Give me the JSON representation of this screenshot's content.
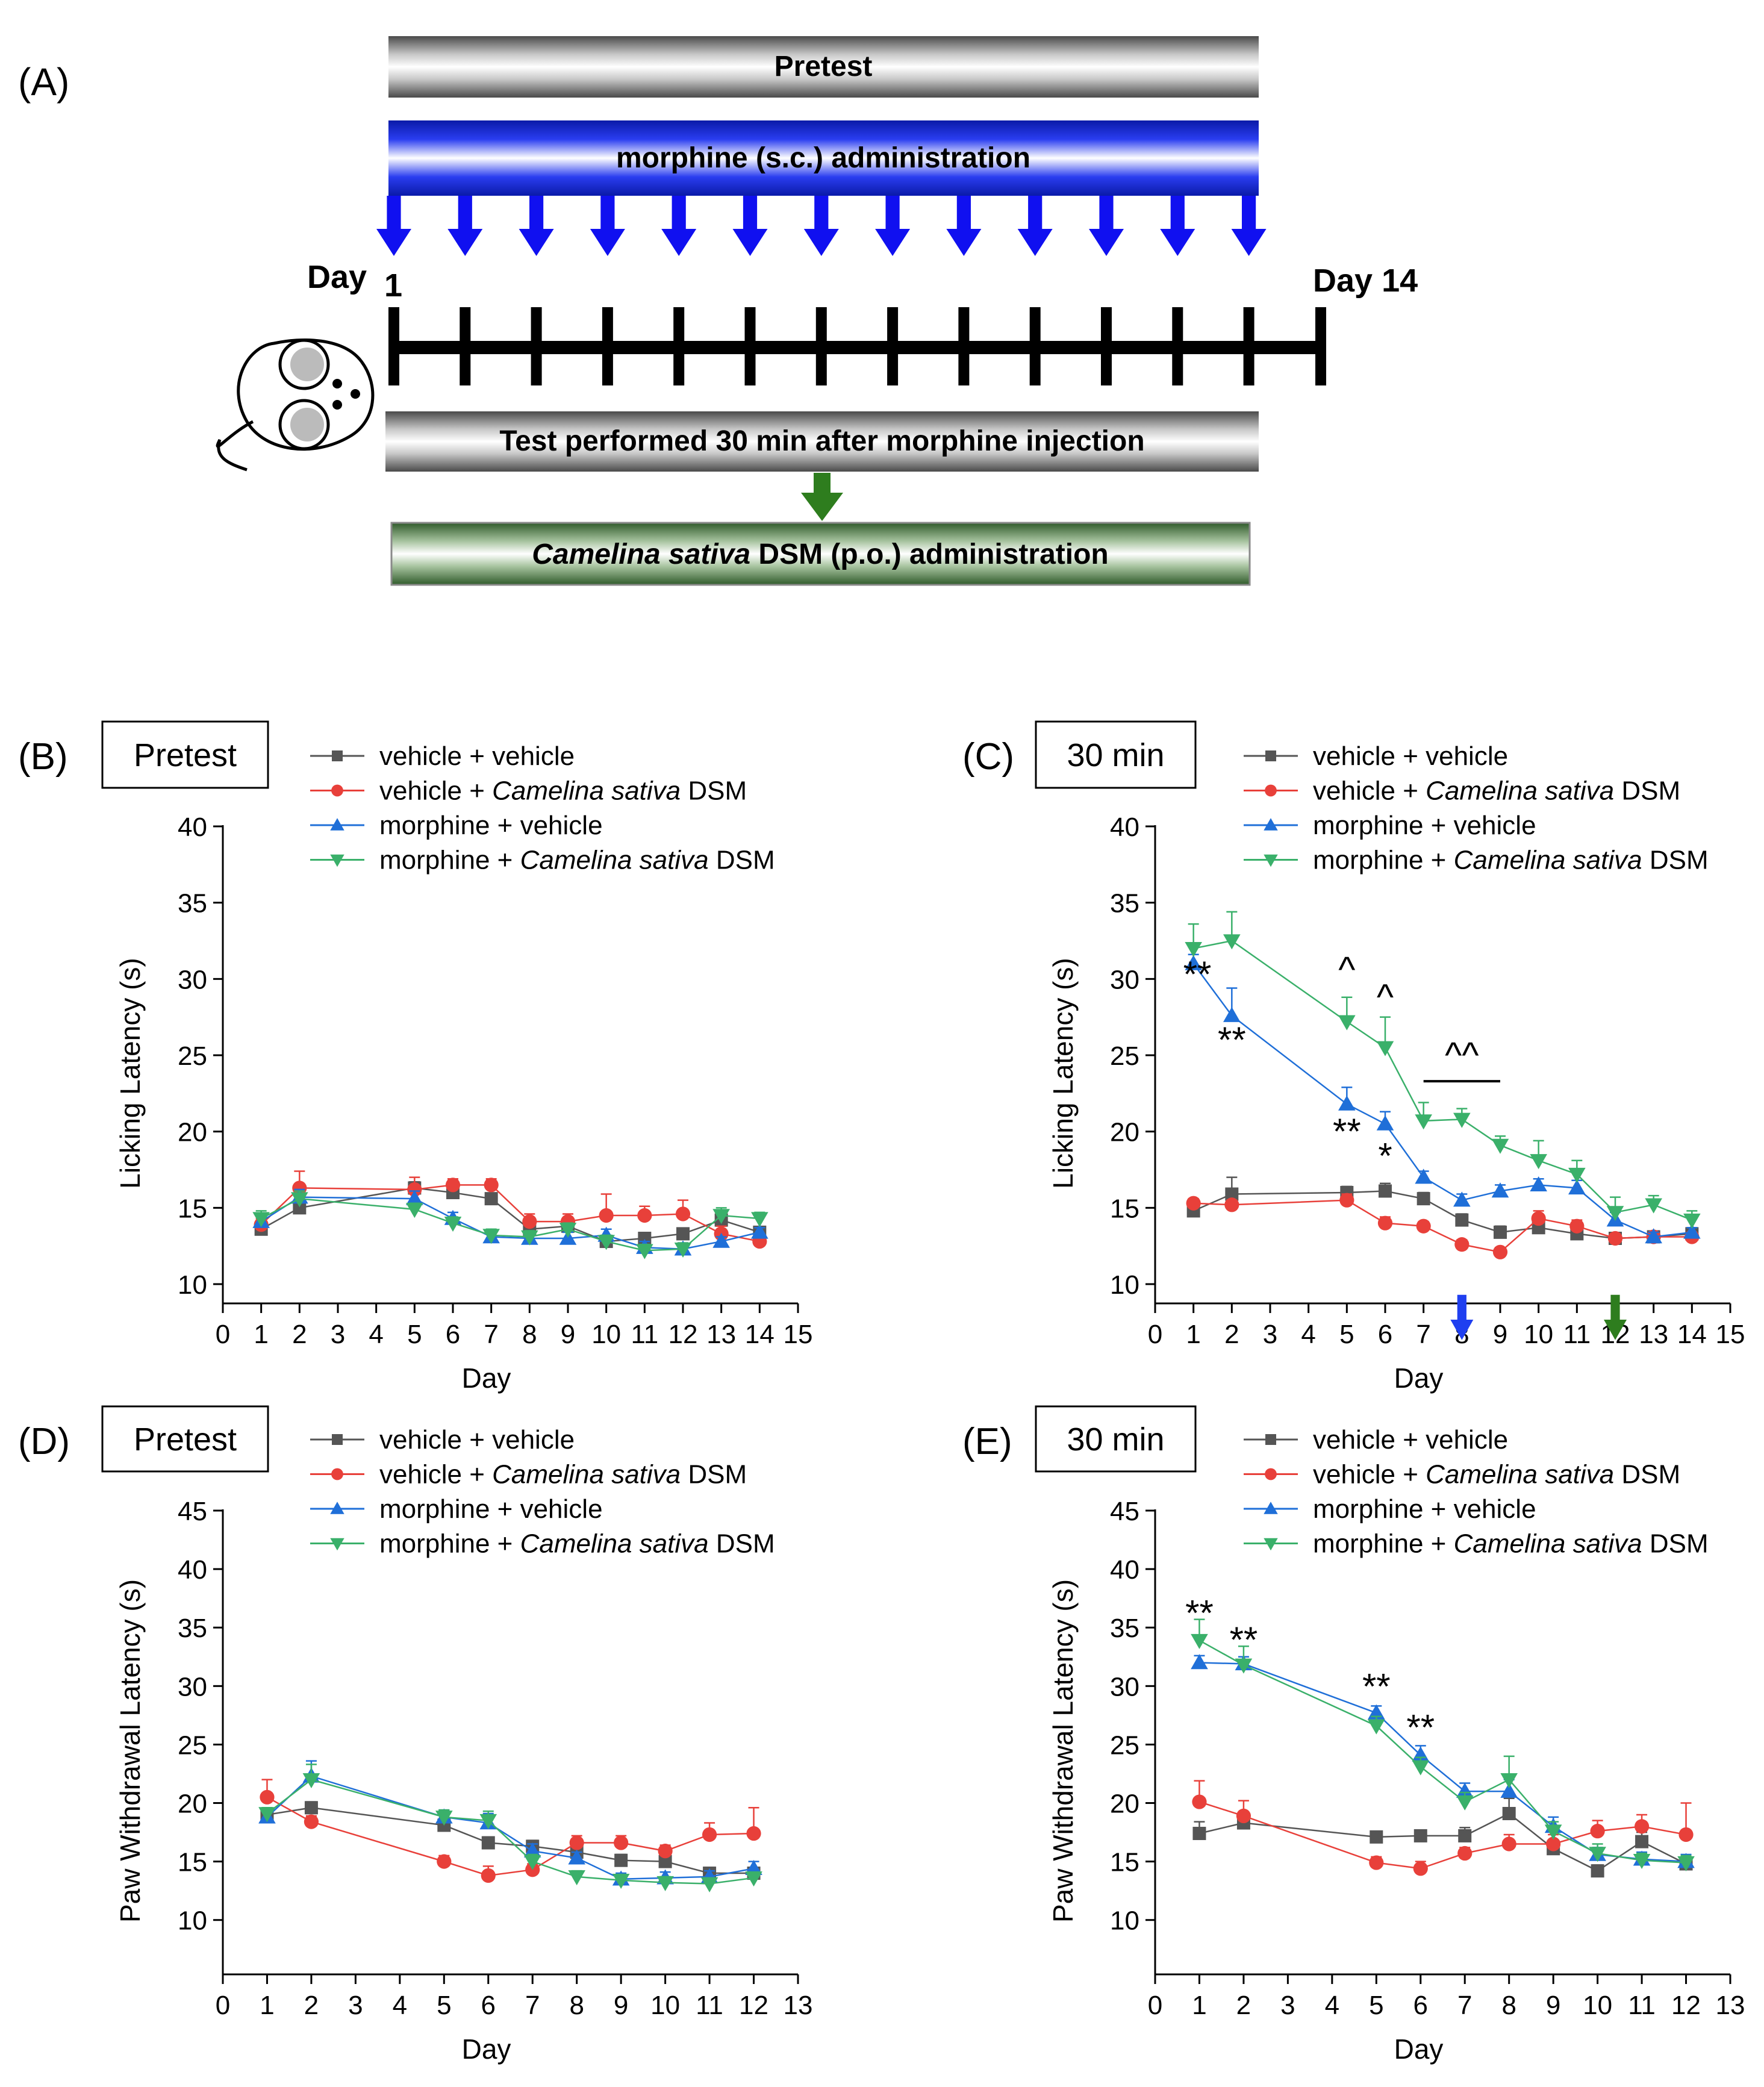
{
  "figure": {
    "panel_a": {
      "label": "(A)",
      "pretest_bar": "Pretest",
      "morphine_bar": "morphine (s.c.) administration",
      "test_bar": "Test performed 30 min after morphine injection",
      "camelina_bar_italic": "Camelina sativa",
      "camelina_bar_rest": " DSM (p.o.) administration",
      "day_start_word": "Day",
      "day_start_num": "1",
      "day_end": "Day 14",
      "colors": {
        "blue": "#1010f0",
        "green": "#2e7d1e",
        "black": "#000000"
      }
    },
    "legend": [
      {
        "prefix": "vehicle + vehicle",
        "italic": "",
        "suffix": "",
        "color": "#555555",
        "marker": "square"
      },
      {
        "prefix": "vehicle + ",
        "italic": "Camelina sativa",
        "suffix": " DSM",
        "color": "#e8403a",
        "marker": "circle"
      },
      {
        "prefix": "morphine + vehicle",
        "italic": "",
        "suffix": "",
        "color": "#1f6fd8",
        "marker": "triangle-up"
      },
      {
        "prefix": "morphine + ",
        "italic": "Camelina sativa",
        "suffix": " DSM",
        "color": "#3ab06a",
        "marker": "triangle-down"
      }
    ]
  },
  "chart_data": [
    {
      "id": "B",
      "type": "line",
      "panel_label": "(B)",
      "boxed_title": "Pretest",
      "xlabel": "Day",
      "ylabel": "Licking Latency (s)",
      "xlim": [
        0,
        15
      ],
      "ylim": [
        10,
        40
      ],
      "xticks": [
        0,
        1,
        2,
        3,
        4,
        5,
        6,
        7,
        8,
        9,
        10,
        11,
        12,
        13,
        14,
        15
      ],
      "yticks": [
        10,
        15,
        20,
        25,
        30,
        35,
        40
      ],
      "x": [
        1,
        2,
        5,
        6,
        7,
        8,
        9,
        10,
        11,
        12,
        13,
        14
      ],
      "series": [
        {
          "name": "vehicle + vehicle",
          "values": [
            13.6,
            15.0,
            16.3,
            16.0,
            15.6,
            13.6,
            13.8,
            12.8,
            13.0,
            13.3,
            14.2,
            13.4
          ],
          "err": [
            0.3,
            0.3,
            0.4,
            0.3,
            0.3,
            0.3,
            0.3,
            0.3,
            0.3,
            0.3,
            0.3,
            0.3
          ]
        },
        {
          "name": "vehicle + Camelina sativa DSM",
          "values": [
            13.9,
            16.3,
            16.2,
            16.5,
            16.5,
            14.1,
            14.1,
            14.5,
            14.5,
            14.6,
            13.3,
            12.8
          ],
          "err": [
            0.4,
            1.1,
            0.8,
            0.4,
            0.4,
            0.5,
            0.5,
            1.4,
            0.6,
            0.9,
            0.5,
            0.3
          ]
        },
        {
          "name": "morphine + vehicle",
          "values": [
            14.1,
            15.7,
            15.6,
            14.3,
            13.1,
            13.0,
            13.0,
            13.2,
            12.4,
            12.3,
            12.8,
            13.4
          ],
          "err": [
            0.5,
            0.5,
            0.5,
            0.4,
            0.4,
            0.4,
            0.4,
            0.4,
            0.4,
            0.4,
            0.3,
            0.3
          ]
        },
        {
          "name": "morphine + Camelina sativa DSM",
          "values": [
            14.3,
            15.6,
            14.9,
            14.0,
            13.2,
            13.1,
            13.6,
            12.8,
            12.2,
            12.3,
            14.5,
            14.3
          ],
          "err": [
            0.5,
            0.5,
            0.4,
            0.4,
            0.4,
            0.4,
            0.4,
            0.4,
            0.4,
            0.4,
            0.5,
            0.4
          ]
        }
      ]
    },
    {
      "id": "C",
      "type": "line",
      "panel_label": "(C)",
      "boxed_title": "30 min",
      "xlabel": "Day",
      "ylabel": "Licking Latency (s)",
      "xlim": [
        0,
        15
      ],
      "ylim": [
        10,
        40
      ],
      "xticks": [
        0,
        1,
        2,
        3,
        4,
        5,
        6,
        7,
        8,
        9,
        10,
        11,
        12,
        13,
        14,
        15
      ],
      "yticks": [
        10,
        15,
        20,
        25,
        30,
        35,
        40
      ],
      "x": [
        1,
        2,
        5,
        6,
        7,
        8,
        9,
        10,
        11,
        12,
        13,
        14
      ],
      "series": [
        {
          "name": "vehicle + vehicle",
          "values": [
            14.8,
            15.9,
            16.0,
            16.1,
            15.6,
            14.2,
            13.4,
            13.7,
            13.3,
            13.0,
            13.1,
            13.3
          ],
          "err": [
            0.3,
            1.1,
            0.4,
            0.5,
            0.4,
            0.4,
            0.4,
            0.4,
            0.3,
            0.3,
            0.3,
            0.3
          ]
        },
        {
          "name": "vehicle + Camelina sativa DSM",
          "values": [
            15.3,
            15.2,
            15.5,
            14.0,
            13.8,
            12.6,
            12.1,
            14.3,
            13.8,
            13.0,
            13.1,
            13.1
          ],
          "err": [
            0.3,
            0.3,
            0.4,
            0.4,
            0.3,
            0.3,
            0.3,
            0.5,
            0.4,
            0.3,
            0.3,
            0.3
          ]
        },
        {
          "name": "morphine + vehicle",
          "values": [
            31.0,
            27.6,
            21.8,
            20.5,
            17.0,
            15.5,
            16.1,
            16.5,
            16.3,
            14.2,
            13.1,
            13.4
          ],
          "err": [
            0.6,
            1.8,
            1.1,
            0.8,
            0.4,
            0.4,
            0.4,
            0.4,
            0.5,
            0.5,
            0.3,
            0.3
          ]
        },
        {
          "name": "morphine + Camelina sativa DSM",
          "values": [
            32.0,
            32.5,
            27.2,
            25.5,
            20.7,
            20.8,
            19.1,
            18.1,
            17.2,
            14.7,
            15.2,
            14.2
          ],
          "err": [
            1.6,
            1.9,
            1.6,
            2.0,
            1.2,
            0.7,
            0.6,
            1.3,
            0.9,
            1.0,
            0.6,
            0.6
          ]
        }
      ],
      "annotations": [
        {
          "text": "**",
          "x": 1.1,
          "y": 29.5
        },
        {
          "text": "**",
          "x": 2.0,
          "y": 25.2
        },
        {
          "text": "^",
          "x": 5.0,
          "y": 29.8
        },
        {
          "text": "^",
          "x": 6.0,
          "y": 28.0
        },
        {
          "text": "^^",
          "x": 8.0,
          "y": 24.2
        },
        {
          "text": "**",
          "x": 5.0,
          "y": 19.2
        },
        {
          "text": "*",
          "x": 6.0,
          "y": 17.6
        }
      ],
      "bracket": {
        "x1": 7,
        "x2": 9,
        "y": 23.3
      },
      "arrows": [
        {
          "x": 8,
          "color": "#1f3ff0"
        },
        {
          "x": 12,
          "color": "#2e7d1e"
        }
      ]
    },
    {
      "id": "D",
      "type": "line",
      "panel_label": "(D)",
      "boxed_title": "Pretest",
      "xlabel": "Day",
      "ylabel": "Paw Withdrawal Latency (s)",
      "xlim": [
        0,
        13
      ],
      "ylim": [
        7,
        45
      ],
      "xticks": [
        0,
        1,
        2,
        3,
        4,
        5,
        6,
        7,
        8,
        9,
        10,
        11,
        12,
        13
      ],
      "yticks": [
        10,
        15,
        20,
        25,
        30,
        35,
        40,
        45
      ],
      "x": [
        1,
        2,
        5,
        6,
        7,
        8,
        9,
        10,
        11,
        12
      ],
      "series": [
        {
          "name": "vehicle + vehicle",
          "values": [
            19.0,
            19.6,
            18.1,
            16.6,
            16.3,
            15.8,
            15.1,
            15.0,
            14.0,
            14.0
          ],
          "err": [
            0.5,
            0.5,
            0.5,
            0.5,
            0.5,
            0.5,
            0.5,
            0.5,
            0.5,
            0.5
          ]
        },
        {
          "name": "vehicle + Camelina sativa DSM",
          "values": [
            20.5,
            18.4,
            15.0,
            13.8,
            14.3,
            16.6,
            16.6,
            15.9,
            17.3,
            17.4
          ],
          "err": [
            1.5,
            0.5,
            0.5,
            0.8,
            0.5,
            0.6,
            0.6,
            0.5,
            1.0,
            2.2
          ]
        },
        {
          "name": "morphine + vehicle",
          "values": [
            18.8,
            22.3,
            18.8,
            18.3,
            15.9,
            15.3,
            13.5,
            13.6,
            13.7,
            14.4
          ],
          "err": [
            0.5,
            1.3,
            0.6,
            0.8,
            0.6,
            0.5,
            0.5,
            0.5,
            0.5,
            0.6
          ]
        },
        {
          "name": "morphine + Camelina sativa DSM",
          "values": [
            19.1,
            22.0,
            18.8,
            18.5,
            15.0,
            13.7,
            13.4,
            13.2,
            13.1,
            13.6
          ],
          "err": [
            0.5,
            1.3,
            0.6,
            0.8,
            0.6,
            0.5,
            0.5,
            0.5,
            0.5,
            0.5
          ]
        }
      ]
    },
    {
      "id": "E",
      "type": "line",
      "panel_label": "(E)",
      "boxed_title": "30 min",
      "xlabel": "Day",
      "ylabel": "Paw Withdrawal Latency (s)",
      "xlim": [
        0,
        13
      ],
      "ylim": [
        7,
        45
      ],
      "xticks": [
        0,
        1,
        2,
        3,
        4,
        5,
        6,
        7,
        8,
        9,
        10,
        11,
        12,
        13
      ],
      "yticks": [
        10,
        15,
        20,
        25,
        30,
        35,
        40,
        45
      ],
      "x": [
        1,
        2,
        5,
        6,
        7,
        8,
        9,
        10,
        11,
        12
      ],
      "series": [
        {
          "name": "vehicle + vehicle",
          "values": [
            17.4,
            18.3,
            17.1,
            17.2,
            17.2,
            19.1,
            16.1,
            14.2,
            16.7,
            14.8
          ],
          "err": [
            1.0,
            0.5,
            0.4,
            0.4,
            0.7,
            1.3,
            0.5,
            0.5,
            0.8,
            0.6
          ]
        },
        {
          "name": "vehicle + Camelina sativa DSM",
          "values": [
            20.1,
            18.9,
            14.9,
            14.4,
            15.7,
            16.5,
            16.5,
            17.6,
            18.0,
            17.3
          ],
          "err": [
            1.8,
            1.3,
            0.5,
            0.6,
            0.5,
            0.8,
            0.8,
            0.9,
            1.0,
            2.7
          ]
        },
        {
          "name": "morphine + vehicle",
          "values": [
            32.0,
            31.9,
            27.7,
            24.1,
            21.0,
            21.0,
            18.0,
            15.6,
            15.2,
            15.0
          ],
          "err": [
            0.6,
            0.6,
            0.6,
            0.8,
            0.7,
            1.0,
            0.8,
            0.6,
            0.6,
            0.6
          ]
        },
        {
          "name": "morphine + Camelina sativa DSM",
          "values": [
            33.9,
            31.8,
            26.6,
            23.1,
            20.1,
            22.0,
            17.6,
            15.7,
            15.1,
            14.9
          ],
          "err": [
            1.8,
            1.6,
            0.8,
            0.8,
            0.8,
            2.0,
            0.8,
            0.8,
            0.6,
            0.6
          ]
        }
      ],
      "annotations": [
        {
          "text": "**",
          "x": 1.0,
          "y": 35.2
        },
        {
          "text": "**",
          "x": 2.0,
          "y": 32.9
        },
        {
          "text": "**",
          "x": 5.0,
          "y": 28.9
        },
        {
          "text": "**",
          "x": 6.0,
          "y": 25.4
        }
      ]
    }
  ]
}
